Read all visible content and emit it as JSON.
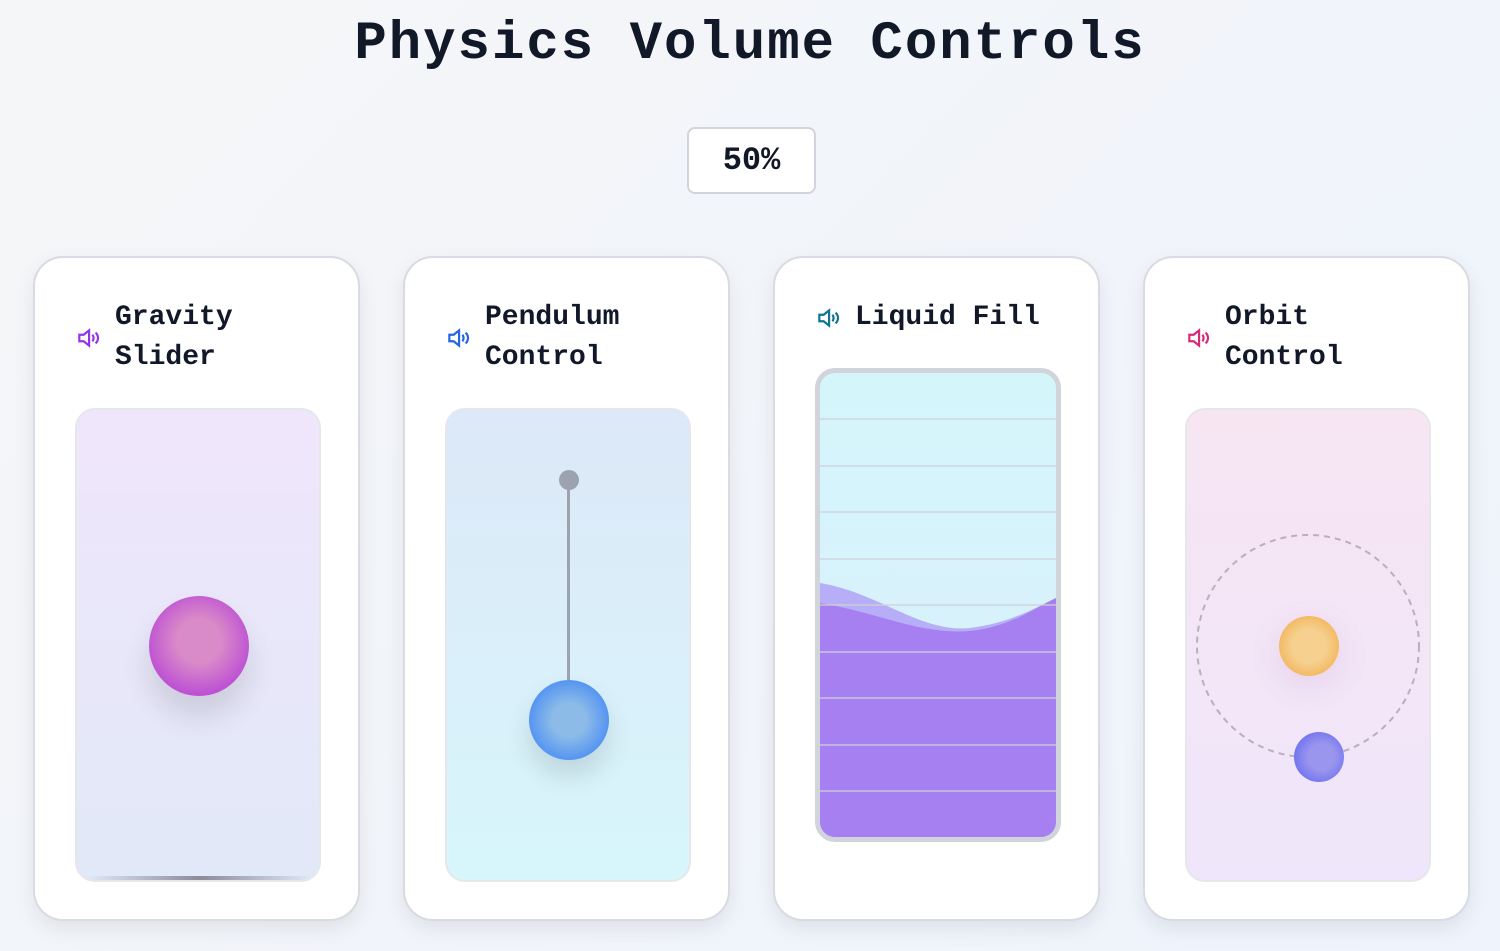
{
  "title": "Physics Volume Controls",
  "volume_display": "50%",
  "volume_percent": 50,
  "cards": [
    {
      "label_line1": "Gravity",
      "label_line2": "Slider",
      "icon": "speaker-icon",
      "accent": "#9333ea"
    },
    {
      "label_line1": "Pendulum",
      "label_line2": "Control",
      "icon": "speaker-icon",
      "accent": "#2563eb"
    },
    {
      "label_line1": "Liquid Fill",
      "icon": "speaker-icon",
      "accent": "#0e7490"
    },
    {
      "label_line1": "Orbit",
      "label_line2": "Control",
      "icon": "speaker-icon",
      "accent": "#db2777"
    }
  ]
}
